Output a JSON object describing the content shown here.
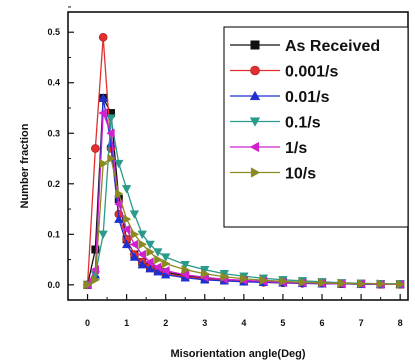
{
  "chart_data": {
    "type": "line",
    "title": "",
    "xlabel": "Misorientation angle(Deg)",
    "ylabel": "Number fraction",
    "xlim": [
      -0.5,
      8.2
    ],
    "ylim": [
      -0.03,
      0.54
    ],
    "xticks": [
      "0",
      "1",
      "2",
      "3",
      "4",
      "5",
      "6",
      "7",
      "8"
    ],
    "yticks": [
      "0.0",
      "0.1",
      "0.2",
      "0.3",
      "0.4",
      "0.5"
    ],
    "legend_position": "top-right",
    "grid": false,
    "series": [
      {
        "name": "As Received",
        "color": "#111111",
        "marker": "square",
        "x": [
          0.0,
          0.2,
          0.4,
          0.6,
          0.8,
          1.0,
          1.2,
          1.4,
          1.6,
          1.8,
          2.0,
          2.5,
          3.0,
          3.5,
          4.0,
          4.5,
          5.0,
          5.5,
          6.0,
          6.5,
          7.0,
          7.5,
          8.0
        ],
        "values": [
          0.0,
          0.07,
          0.37,
          0.34,
          0.17,
          0.09,
          0.06,
          0.045,
          0.035,
          0.03,
          0.025,
          0.018,
          0.013,
          0.01,
          0.008,
          0.006,
          0.005,
          0.004,
          0.003,
          0.002,
          0.002,
          0.001,
          0.001
        ]
      },
      {
        "name": "0.001/s",
        "color": "#e03030",
        "marker": "circle",
        "x": [
          0.0,
          0.2,
          0.4,
          0.6,
          0.8,
          1.0,
          1.2,
          1.4,
          1.6,
          1.8,
          2.0,
          2.5,
          3.0,
          3.5,
          4.0,
          4.5,
          5.0,
          5.5,
          6.0,
          6.5,
          7.0,
          7.5,
          8.0
        ],
        "values": [
          0.0,
          0.27,
          0.49,
          0.27,
          0.14,
          0.09,
          0.06,
          0.045,
          0.035,
          0.028,
          0.022,
          0.016,
          0.012,
          0.009,
          0.007,
          0.005,
          0.004,
          0.003,
          0.003,
          0.002,
          0.002,
          0.001,
          0.001
        ]
      },
      {
        "name": "0.01/s",
        "color": "#1f2fd0",
        "marker": "triangle-up",
        "x": [
          0.0,
          0.2,
          0.4,
          0.6,
          0.8,
          1.0,
          1.2,
          1.4,
          1.6,
          1.8,
          2.0,
          2.5,
          3.0,
          3.5,
          4.0,
          4.5,
          5.0,
          5.5,
          6.0,
          6.5,
          7.0,
          7.5,
          8.0
        ],
        "values": [
          0.0,
          0.02,
          0.37,
          0.28,
          0.13,
          0.08,
          0.055,
          0.04,
          0.032,
          0.026,
          0.02,
          0.014,
          0.01,
          0.008,
          0.006,
          0.005,
          0.004,
          0.003,
          0.002,
          0.002,
          0.001,
          0.001,
          0.001
        ]
      },
      {
        "name": "0.1/s",
        "color": "#2a9a8a",
        "marker": "triangle-down",
        "x": [
          0.0,
          0.2,
          0.4,
          0.6,
          0.8,
          1.0,
          1.2,
          1.4,
          1.6,
          1.8,
          2.0,
          2.5,
          3.0,
          3.5,
          4.0,
          4.5,
          5.0,
          5.5,
          6.0,
          6.5,
          7.0,
          7.5,
          8.0
        ],
        "values": [
          0.0,
          0.02,
          0.1,
          0.33,
          0.24,
          0.19,
          0.14,
          0.1,
          0.08,
          0.065,
          0.055,
          0.04,
          0.03,
          0.022,
          0.017,
          0.013,
          0.01,
          0.008,
          0.006,
          0.004,
          0.003,
          0.002,
          0.002
        ]
      },
      {
        "name": "1/s",
        "color": "#d020d0",
        "marker": "triangle-left",
        "x": [
          0.0,
          0.2,
          0.4,
          0.6,
          0.8,
          1.0,
          1.2,
          1.4,
          1.6,
          1.8,
          2.0,
          2.5,
          3.0,
          3.5,
          4.0,
          4.5,
          5.0,
          5.5,
          6.0,
          6.5,
          7.0,
          7.5,
          8.0
        ],
        "values": [
          0.0,
          0.03,
          0.34,
          0.3,
          0.16,
          0.11,
          0.08,
          0.06,
          0.045,
          0.035,
          0.028,
          0.02,
          0.015,
          0.011,
          0.009,
          0.007,
          0.005,
          0.004,
          0.003,
          0.002,
          0.002,
          0.001,
          0.001
        ]
      },
      {
        "name": "10/s",
        "color": "#8a8a20",
        "marker": "triangle-right",
        "x": [
          0.0,
          0.2,
          0.4,
          0.6,
          0.8,
          1.0,
          1.2,
          1.4,
          1.6,
          1.8,
          2.0,
          2.5,
          3.0,
          3.5,
          4.0,
          4.5,
          5.0,
          5.5,
          6.0,
          6.5,
          7.0,
          7.5,
          8.0
        ],
        "values": [
          0.0,
          0.01,
          0.24,
          0.25,
          0.18,
          0.13,
          0.1,
          0.08,
          0.065,
          0.05,
          0.042,
          0.03,
          0.022,
          0.016,
          0.012,
          0.009,
          0.007,
          0.005,
          0.004,
          0.003,
          0.002,
          0.002,
          0.001
        ]
      }
    ]
  }
}
